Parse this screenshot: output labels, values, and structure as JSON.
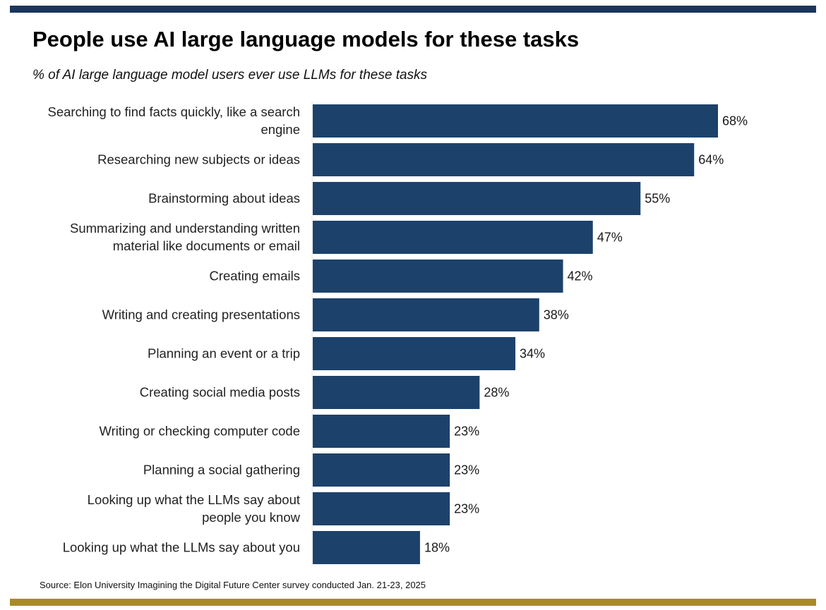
{
  "header": {
    "title": "People use AI large language models for these tasks",
    "subtitle": "% of AI large language model users ever use LLMs for these tasks"
  },
  "footer": {
    "source": "Source: Elon University Imagining the Digital Future Center survey conducted Jan. 21-23, 2025"
  },
  "colors": {
    "bar": "#1c426b",
    "top_rule": "#1b365d",
    "bottom_rule": "#a88a2b"
  },
  "chart_data": {
    "type": "bar",
    "orientation": "horizontal",
    "title": "People use AI large language models for these tasks",
    "subtitle": "% of AI large language model users ever use LLMs for these tasks",
    "categories": [
      [
        "Searching to find facts quickly, like a search",
        "engine"
      ],
      [
        "Researching new subjects or ideas"
      ],
      [
        "Brainstorming about ideas"
      ],
      [
        "Summarizing and understanding written",
        "material like documents or email"
      ],
      [
        "Creating emails"
      ],
      [
        "Writing and creating presentations"
      ],
      [
        "Planning an event or a trip"
      ],
      [
        "Creating social media posts"
      ],
      [
        "Writing or checking computer code"
      ],
      [
        "Planning a social gathering"
      ],
      [
        "Looking up what the LLMs say about",
        "people you know"
      ],
      [
        "Looking up what the LLMs say about you"
      ]
    ],
    "values": [
      68,
      64,
      55,
      47,
      42,
      38,
      34,
      28,
      23,
      23,
      23,
      18
    ],
    "value_labels": [
      "68%",
      "64%",
      "55%",
      "47%",
      "42%",
      "38%",
      "34%",
      "28%",
      "23%",
      "23%",
      "23%",
      "18%"
    ],
    "xlim": [
      0,
      68
    ],
    "grid": false,
    "legend": "none"
  }
}
